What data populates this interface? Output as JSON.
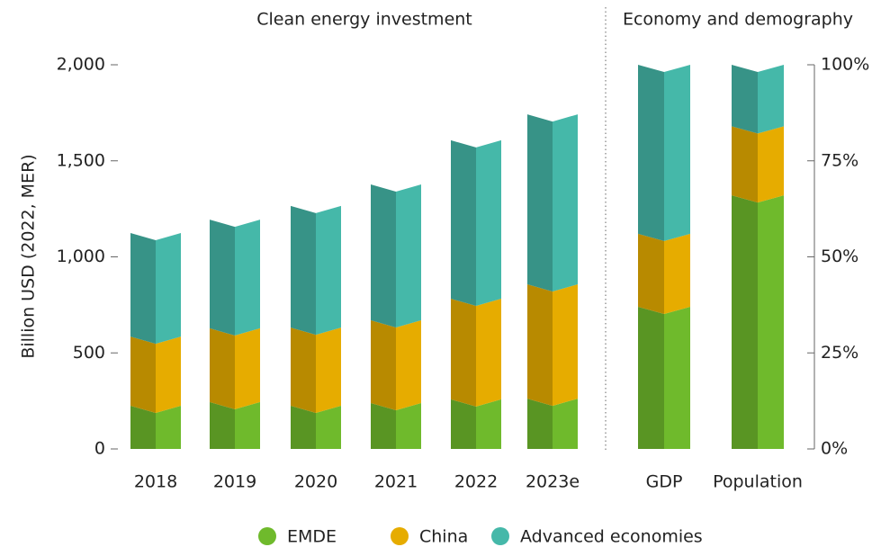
{
  "chart_data": [
    {
      "type": "bar",
      "stacked": true,
      "title": "Clean energy investment",
      "y_label": "Billion USD (2022, MER)",
      "categories": [
        "2018",
        "2019",
        "2020",
        "2021",
        "2022",
        "2023e"
      ],
      "series": [
        {
          "name": "EMDE",
          "color": "#6fba2c",
          "values": [
            225,
            244,
            225,
            239,
            258,
            262
          ]
        },
        {
          "name": "China",
          "color": "#e6ac00",
          "values": [
            360,
            384,
            407,
            431,
            524,
            595
          ]
        },
        {
          "name": "Advanced economies",
          "color": "#45b8a9",
          "values": [
            539,
            566,
            633,
            707,
            825,
            885
          ]
        }
      ],
      "ylim": [
        0,
        2000
      ],
      "yticks": [
        0,
        500,
        {
          "value": 1000,
          "label": "1,000"
        },
        {
          "value": 1500,
          "label": "1,500"
        },
        {
          "value": 2000,
          "label": "2,000"
        }
      ],
      "legend": "bottom"
    },
    {
      "type": "bar",
      "stacked": true,
      "title": "Economy and demography",
      "categories": [
        "GDP",
        "Population"
      ],
      "series": [
        {
          "color": "#6fba2c",
          "values": [
            37,
            66
          ],
          "axis": "y2"
        },
        {
          "color": "#e6ac00",
          "values": [
            19,
            18
          ],
          "axis": "y2"
        },
        {
          "color": "#45b8a9",
          "values": [
            44,
            16
          ],
          "axis": "y2"
        }
      ],
      "y2lim": [
        0,
        100
      ],
      "y2ticks": [
        {
          "value": 0,
          "label": "0%"
        },
        {
          "value": 25,
          "label": "25%"
        },
        {
          "value": 50,
          "label": "50%"
        },
        {
          "value": 75,
          "label": "75%"
        },
        {
          "value": 100,
          "label": "100%"
        }
      ]
    }
  ]
}
